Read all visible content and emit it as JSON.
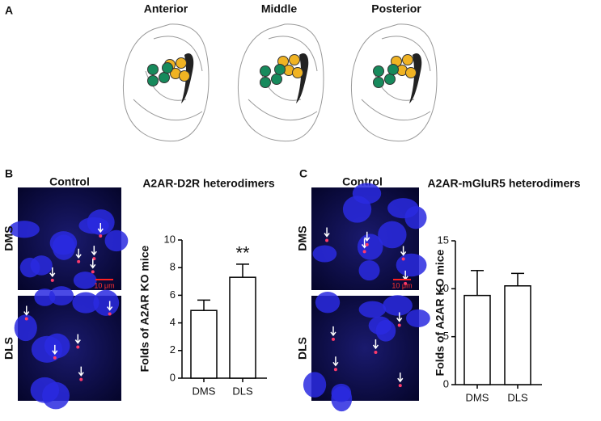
{
  "panel_a": {
    "label": "A",
    "sections": [
      "Anterior",
      "Middle",
      "Posterior"
    ]
  },
  "panel_b": {
    "label": "B",
    "image_title": "Control",
    "rows": [
      "DMS",
      "DLS"
    ],
    "scale_bar": "10 μm"
  },
  "panel_c": {
    "label": "C",
    "image_title": "Control",
    "rows": [
      "DMS",
      "DLS"
    ],
    "scale_bar": "10 μm"
  },
  "chart_data": [
    {
      "type": "bar",
      "title": "A2AR-D2R heterodimers",
      "y_label": "Folds of A2AR KO mice",
      "categories": [
        "DMS",
        "DLS"
      ],
      "values": [
        4.9,
        7.3
      ],
      "errors": [
        0.75,
        0.95
      ],
      "color": "#ffffff",
      "annotations": [
        null,
        "**"
      ],
      "ylim": [
        0,
        10
      ],
      "yticks": [
        0,
        2,
        4,
        6,
        8,
        10
      ]
    },
    {
      "type": "bar",
      "title": "A2AR-mGluR5 heterodimers",
      "y_label": "Folds of A2AR KO mice",
      "categories": [
        "DMS",
        "DLS"
      ],
      "values": [
        9.3,
        10.3
      ],
      "errors": [
        2.6,
        1.3
      ],
      "color": "#ffffff",
      "annotations": [
        null,
        null
      ],
      "ylim": [
        0,
        15
      ],
      "yticks": [
        0,
        5,
        10,
        15
      ]
    }
  ]
}
